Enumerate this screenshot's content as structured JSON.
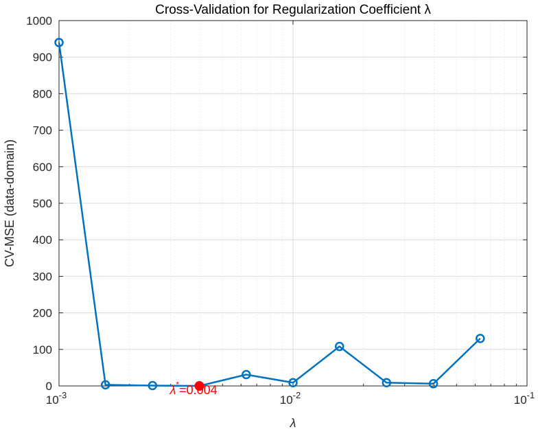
{
  "chart_data": {
    "type": "line",
    "title": "Cross-Validation for Regularization Coefficient λ",
    "xlabel": "λ",
    "ylabel": "CV-MSE (data-domain)",
    "x_scale": "log",
    "xlim": [
      0.001,
      0.1
    ],
    "ylim": [
      0,
      1000
    ],
    "x_tick_labels": [
      {
        "base": "10",
        "exp": "-3"
      },
      {
        "base": "10",
        "exp": "-2"
      },
      {
        "base": "10",
        "exp": "-1"
      }
    ],
    "y_tick_labels": [
      "0",
      "100",
      "200",
      "300",
      "400",
      "500",
      "600",
      "700",
      "800",
      "900",
      "1000"
    ],
    "grid": true,
    "minor_grid_x": true,
    "series": [
      {
        "color": "#0072BD",
        "marker": "circle",
        "points": [
          {
            "x": 0.001,
            "y": 940
          },
          {
            "x": 0.00158,
            "y": 3
          },
          {
            "x": 0.00251,
            "y": 1
          },
          {
            "x": 0.00398,
            "y": 0
          },
          {
            "x": 0.00631,
            "y": 31
          },
          {
            "x": 0.01,
            "y": 9
          },
          {
            "x": 0.0158,
            "y": 108
          },
          {
            "x": 0.0251,
            "y": 9
          },
          {
            "x": 0.0398,
            "y": 6
          },
          {
            "x": 0.0631,
            "y": 130
          }
        ]
      }
    ],
    "highlight": {
      "x": 0.00398,
      "y": 0,
      "color": "#FF0000",
      "label_symbol": "λ",
      "label_sup": "*",
      "label_value": "=0.004"
    }
  }
}
